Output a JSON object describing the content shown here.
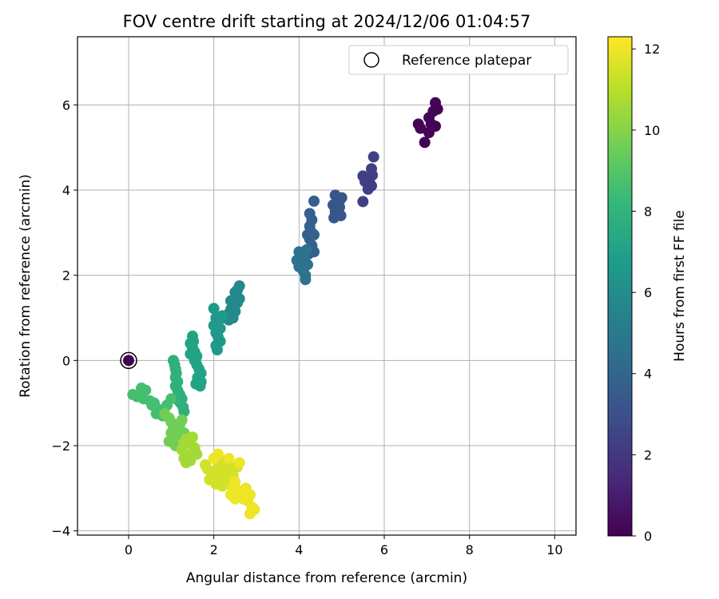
{
  "chart_data": {
    "type": "scatter",
    "title": "FOV centre drift starting at 2024/12/06 01:04:57",
    "xlabel": "Angular distance from reference (arcmin)",
    "ylabel": "Rotation from reference (arcmin)",
    "xlim": [
      -1.2,
      10.5
    ],
    "ylim": [
      -4.1,
      7.6
    ],
    "xticks": [
      0,
      2,
      4,
      6,
      8,
      10
    ],
    "yticks": [
      -4,
      -2,
      0,
      2,
      4,
      6
    ],
    "xtick_labels": [
      "0",
      "2",
      "4",
      "6",
      "8",
      "10"
    ],
    "ytick_labels": [
      "−4",
      "−2",
      "0",
      "2",
      "4",
      "6"
    ],
    "grid": true,
    "legend": {
      "placement": "top-right",
      "entries": [
        "Reference platepar"
      ]
    },
    "colorbar": {
      "label": "Hours from first FF file",
      "range": [
        0,
        12.3
      ],
      "ticks": [
        0,
        2,
        4,
        6,
        8,
        10,
        12
      ],
      "tick_labels": [
        "0",
        "2",
        "4",
        "6",
        "8",
        "10",
        "12"
      ],
      "colormap": "viridis",
      "stops": [
        "#440154",
        "#482878",
        "#3e4a89",
        "#31688e",
        "#26828e",
        "#1f9e89",
        "#35b779",
        "#6ece58",
        "#b5de2b",
        "#fde725"
      ]
    },
    "reference_point": {
      "x": 0,
      "y": 0,
      "hours": 0
    },
    "series": [
      {
        "hours": 0.1,
        "points": [
          [
            7.2,
            6.05
          ],
          [
            7.15,
            5.85
          ],
          [
            7.05,
            5.7
          ],
          [
            7.1,
            5.55
          ],
          [
            7.2,
            5.5
          ],
          [
            7.05,
            5.35
          ],
          [
            6.8,
            5.55
          ],
          [
            6.85,
            5.45
          ],
          [
            6.95,
            5.12
          ],
          [
            7.25,
            5.9
          ]
        ]
      },
      {
        "hours": 2.3,
        "points": [
          [
            5.75,
            4.78
          ],
          [
            5.7,
            4.5
          ],
          [
            5.72,
            4.35
          ],
          [
            5.65,
            4.2
          ],
          [
            5.5,
            4.33
          ],
          [
            5.55,
            4.2
          ],
          [
            5.6,
            4.25
          ],
          [
            5.7,
            4.1
          ],
          [
            5.5,
            3.73
          ],
          [
            5.62,
            4.02
          ]
        ]
      },
      {
        "hours": 3.3,
        "points": [
          [
            4.85,
            3.88
          ],
          [
            4.95,
            3.75
          ],
          [
            5.0,
            3.82
          ],
          [
            4.8,
            3.65
          ],
          [
            4.95,
            3.6
          ],
          [
            4.85,
            3.5
          ],
          [
            4.9,
            3.45
          ],
          [
            4.98,
            3.4
          ],
          [
            4.82,
            3.35
          ],
          [
            4.88,
            3.55
          ],
          [
            4.92,
            3.7
          ]
        ]
      },
      {
        "hours": 3.8,
        "points": [
          [
            4.35,
            3.74
          ],
          [
            4.25,
            3.45
          ],
          [
            4.3,
            3.3
          ],
          [
            4.25,
            3.15
          ],
          [
            4.3,
            3.0
          ],
          [
            4.35,
            2.95
          ],
          [
            4.25,
            2.85
          ],
          [
            4.2,
            2.95
          ],
          [
            4.3,
            2.7
          ],
          [
            4.25,
            2.62
          ],
          [
            4.35,
            2.55
          ],
          [
            4.22,
            2.5
          ]
        ]
      },
      {
        "hours": 4.6,
        "points": [
          [
            4.0,
            2.55
          ],
          [
            3.95,
            2.35
          ],
          [
            4.05,
            2.45
          ],
          [
            4.1,
            2.3
          ],
          [
            4.0,
            2.2
          ],
          [
            4.1,
            2.1
          ],
          [
            4.15,
            2.0
          ],
          [
            4.15,
            1.9
          ],
          [
            4.2,
            2.25
          ],
          [
            4.12,
            2.4
          ],
          [
            4.18,
            2.6
          ]
        ]
      },
      {
        "hours": 5.8,
        "points": [
          [
            2.6,
            1.75
          ],
          [
            2.55,
            1.65
          ],
          [
            2.5,
            1.6
          ],
          [
            2.6,
            1.45
          ],
          [
            2.55,
            1.35
          ],
          [
            2.45,
            1.3
          ],
          [
            2.4,
            1.2
          ],
          [
            2.5,
            1.15
          ],
          [
            2.35,
            1.1
          ],
          [
            2.3,
            1.05
          ],
          [
            2.35,
            0.95
          ],
          [
            2.45,
            1.0
          ],
          [
            2.4,
            1.4
          ]
        ]
      },
      {
        "hours": 6.6,
        "points": [
          [
            2.0,
            1.22
          ],
          [
            2.05,
            1.0
          ],
          [
            2.1,
            0.9
          ],
          [
            2.0,
            0.82
          ],
          [
            2.15,
            0.75
          ],
          [
            2.05,
            0.65
          ],
          [
            2.1,
            0.55
          ],
          [
            2.15,
            0.45
          ],
          [
            2.05,
            0.35
          ],
          [
            2.08,
            0.25
          ],
          [
            2.2,
            1.05
          ]
        ]
      },
      {
        "hours": 7.1,
        "points": [
          [
            1.5,
            0.57
          ],
          [
            1.45,
            0.4
          ],
          [
            1.5,
            0.3
          ],
          [
            1.55,
            0.2
          ],
          [
            1.45,
            0.15
          ],
          [
            1.6,
            0.1
          ],
          [
            1.55,
            0.0
          ],
          [
            1.6,
            -0.1
          ],
          [
            1.65,
            -0.2
          ],
          [
            1.7,
            -0.3
          ],
          [
            1.62,
            -0.4
          ],
          [
            1.7,
            -0.5
          ],
          [
            1.68,
            -0.6
          ],
          [
            1.58,
            -0.55
          ],
          [
            1.52,
            0.45
          ]
        ]
      },
      {
        "hours": 7.8,
        "points": [
          [
            1.05,
            0.0
          ],
          [
            1.08,
            -0.1
          ],
          [
            1.1,
            -0.2
          ],
          [
            1.12,
            -0.3
          ],
          [
            1.1,
            -0.4
          ],
          [
            1.15,
            -0.5
          ],
          [
            1.1,
            -0.6
          ],
          [
            1.15,
            -0.7
          ],
          [
            1.2,
            -0.8
          ],
          [
            1.25,
            -0.9
          ],
          [
            1.22,
            -1.0
          ],
          [
            1.28,
            -1.1
          ],
          [
            1.3,
            -1.2
          ],
          [
            1.18,
            -0.95
          ]
        ]
      },
      {
        "hours": 8.6,
        "points": [
          [
            0.3,
            -0.65
          ],
          [
            0.3,
            -0.75
          ],
          [
            0.2,
            -0.85
          ],
          [
            0.35,
            -0.9
          ],
          [
            0.5,
            -0.95
          ],
          [
            0.6,
            -1.0
          ],
          [
            0.55,
            -1.05
          ],
          [
            0.7,
            -1.15
          ],
          [
            0.75,
            -1.2
          ],
          [
            0.8,
            -1.3
          ],
          [
            0.65,
            -1.25
          ],
          [
            0.1,
            -0.8
          ],
          [
            0.4,
            -0.7
          ],
          [
            1.0,
            -0.9
          ],
          [
            0.9,
            -1.05
          ]
        ]
      },
      {
        "hours": 9.6,
        "points": [
          [
            0.85,
            -1.25
          ],
          [
            0.95,
            -1.35
          ],
          [
            1.0,
            -1.45
          ],
          [
            1.05,
            -1.55
          ],
          [
            1.1,
            -1.6
          ],
          [
            1.2,
            -1.5
          ],
          [
            1.25,
            -1.4
          ],
          [
            1.3,
            -1.7
          ],
          [
            1.15,
            -1.75
          ],
          [
            1.05,
            -1.85
          ],
          [
            0.95,
            -1.9
          ],
          [
            1.1,
            -2.0
          ],
          [
            1.0,
            -1.7
          ]
        ]
      },
      {
        "hours": 10.6,
        "points": [
          [
            1.35,
            -1.85
          ],
          [
            1.45,
            -1.95
          ],
          [
            1.55,
            -2.05
          ],
          [
            1.5,
            -2.15
          ],
          [
            1.4,
            -2.25
          ],
          [
            1.3,
            -2.3
          ],
          [
            1.25,
            -2.1
          ],
          [
            1.35,
            -2.4
          ],
          [
            1.45,
            -2.35
          ],
          [
            1.6,
            -2.2
          ],
          [
            1.5,
            -1.8
          ],
          [
            1.3,
            -1.95
          ]
        ]
      },
      {
        "hours": 11.5,
        "points": [
          [
            1.8,
            -2.45
          ],
          [
            1.85,
            -2.55
          ],
          [
            1.95,
            -2.65
          ],
          [
            2.0,
            -2.75
          ],
          [
            2.1,
            -2.5
          ],
          [
            2.15,
            -2.35
          ],
          [
            2.25,
            -2.4
          ],
          [
            2.3,
            -2.6
          ],
          [
            2.2,
            -2.7
          ],
          [
            2.35,
            -2.8
          ],
          [
            2.45,
            -2.7
          ],
          [
            2.55,
            -2.5
          ],
          [
            2.4,
            -2.45
          ],
          [
            1.9,
            -2.8
          ],
          [
            2.05,
            -2.9
          ],
          [
            2.2,
            -2.95
          ]
        ]
      },
      {
        "hours": 12.0,
        "points": [
          [
            2.1,
            -2.2
          ],
          [
            2.0,
            -2.3
          ],
          [
            2.6,
            -2.4
          ],
          [
            2.5,
            -2.85
          ],
          [
            2.45,
            -3.0
          ],
          [
            2.55,
            -3.05
          ],
          [
            2.4,
            -3.15
          ],
          [
            2.5,
            -3.25
          ],
          [
            2.75,
            -3.0
          ],
          [
            2.85,
            -3.15
          ],
          [
            2.8,
            -3.3
          ],
          [
            2.9,
            -3.45
          ],
          [
            2.95,
            -3.5
          ],
          [
            2.85,
            -3.6
          ],
          [
            2.7,
            -3.25
          ],
          [
            2.6,
            -3.2
          ],
          [
            2.35,
            -2.3
          ]
        ]
      }
    ]
  }
}
